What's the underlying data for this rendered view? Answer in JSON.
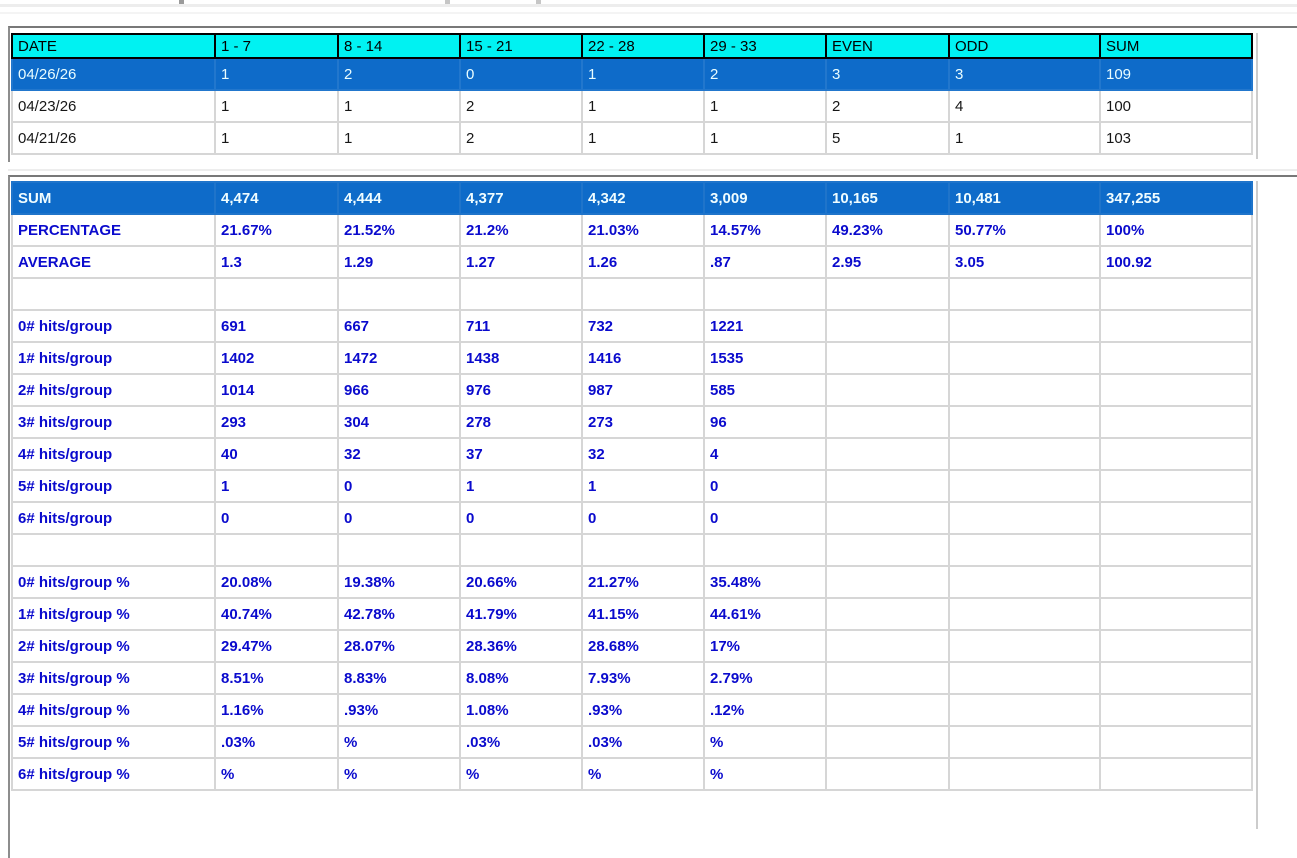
{
  "colors": {
    "header_bg": "#00f2f2",
    "highlight_row_bg": "#0e6bc9",
    "highlight_row_text": "#f0fdff",
    "stats_text_blue": "#0a0acd",
    "grid_line": "#d6d6d6",
    "panel_border": "#787878"
  },
  "recent_table": {
    "columns": [
      "DATE",
      "1 - 7",
      "8 - 14",
      "15 - 21",
      "22 - 28",
      "29 - 33",
      "EVEN",
      "ODD",
      "SUM"
    ],
    "rows": [
      {
        "selected": true,
        "cells": [
          "04/26/26",
          "1",
          "2",
          "0",
          "1",
          "2",
          "3",
          "3",
          "109"
        ]
      },
      {
        "selected": false,
        "cells": [
          "04/23/26",
          "1",
          "1",
          "2",
          "1",
          "1",
          "2",
          "4",
          "100"
        ]
      },
      {
        "selected": false,
        "cells": [
          "04/21/26",
          "1",
          "1",
          "2",
          "1",
          "1",
          "5",
          "1",
          "103"
        ]
      }
    ]
  },
  "stats_table": {
    "rows": [
      {
        "label": "SUM",
        "highlight": true,
        "values": [
          "4,474",
          "4,444",
          "4,377",
          "4,342",
          "3,009",
          "10,165",
          "10,481",
          "347,255"
        ]
      },
      {
        "label": "PERCENTAGE",
        "highlight": false,
        "values": [
          "21.67%",
          "21.52%",
          "21.2%",
          "21.03%",
          "14.57%",
          "49.23%",
          "50.77%",
          "100%"
        ]
      },
      {
        "label": "AVERAGE",
        "highlight": false,
        "values": [
          "1.3",
          "1.29",
          "1.27",
          "1.26",
          ".87",
          "2.95",
          "3.05",
          "100.92"
        ]
      },
      {
        "label": "",
        "highlight": false,
        "values": [
          "",
          "",
          "",
          "",
          "",
          "",
          "",
          ""
        ]
      },
      {
        "label": "0# hits/group",
        "highlight": false,
        "values": [
          "691",
          "667",
          "711",
          "732",
          "1221",
          "",
          "",
          ""
        ]
      },
      {
        "label": "1# hits/group",
        "highlight": false,
        "values": [
          "1402",
          "1472",
          "1438",
          "1416",
          "1535",
          "",
          "",
          ""
        ]
      },
      {
        "label": "2# hits/group",
        "highlight": false,
        "values": [
          "1014",
          "966",
          "976",
          "987",
          "585",
          "",
          "",
          ""
        ]
      },
      {
        "label": "3# hits/group",
        "highlight": false,
        "values": [
          "293",
          "304",
          "278",
          "273",
          "96",
          "",
          "",
          ""
        ]
      },
      {
        "label": "4# hits/group",
        "highlight": false,
        "values": [
          "40",
          "32",
          "37",
          "32",
          "4",
          "",
          "",
          ""
        ]
      },
      {
        "label": "5# hits/group",
        "highlight": false,
        "values": [
          "1",
          "0",
          "1",
          "1",
          "0",
          "",
          "",
          ""
        ]
      },
      {
        "label": "6# hits/group",
        "highlight": false,
        "values": [
          "0",
          "0",
          "0",
          "0",
          "0",
          "",
          "",
          ""
        ]
      },
      {
        "label": "",
        "highlight": false,
        "values": [
          "",
          "",
          "",
          "",
          "",
          "",
          "",
          ""
        ]
      },
      {
        "label": "0# hits/group %",
        "highlight": false,
        "values": [
          "20.08%",
          "19.38%",
          "20.66%",
          "21.27%",
          "35.48%",
          "",
          "",
          ""
        ]
      },
      {
        "label": "1# hits/group %",
        "highlight": false,
        "values": [
          "40.74%",
          "42.78%",
          "41.79%",
          "41.15%",
          "44.61%",
          "",
          "",
          ""
        ]
      },
      {
        "label": "2# hits/group %",
        "highlight": false,
        "values": [
          "29.47%",
          "28.07%",
          "28.36%",
          "28.68%",
          "17%",
          "",
          "",
          ""
        ]
      },
      {
        "label": "3# hits/group %",
        "highlight": false,
        "values": [
          "8.51%",
          "8.83%",
          "8.08%",
          "7.93%",
          "2.79%",
          "",
          "",
          ""
        ]
      },
      {
        "label": "4# hits/group %",
        "highlight": false,
        "values": [
          "1.16%",
          ".93%",
          "1.08%",
          ".93%",
          ".12%",
          "",
          "",
          ""
        ]
      },
      {
        "label": "5# hits/group %",
        "highlight": false,
        "values": [
          ".03%",
          "%",
          ".03%",
          ".03%",
          "%",
          "",
          "",
          ""
        ]
      },
      {
        "label": "6# hits/group %",
        "highlight": false,
        "values": [
          "%",
          "%",
          "%",
          "%",
          "%",
          "",
          "",
          ""
        ]
      }
    ]
  }
}
